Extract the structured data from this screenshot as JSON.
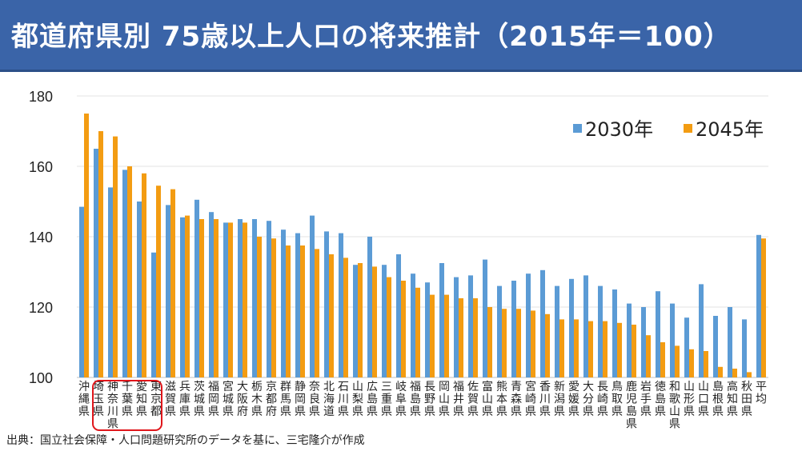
{
  "title": "都道府県別 75歳以上人口の将来推計（2015年＝100）",
  "source": "出典：国立社会保障・人口問題研究所のデータを基に、三宅隆介が作成",
  "colors": {
    "header_bg": "#3a64a8",
    "series_2030": "#5b9bd5",
    "series_2045": "#f39c12",
    "highlight": "#e0161b"
  },
  "chart_data": {
    "type": "bar",
    "ylim": [
      100,
      180
    ],
    "yticks": [
      100,
      120,
      140,
      160,
      180
    ],
    "grid": true,
    "legend_position": "top-right",
    "highlighted_categories": [
      "埼玉県",
      "神奈川県",
      "千葉県",
      "愛知県",
      "東京都"
    ],
    "categories": [
      "沖縄県",
      "埼玉県",
      "神奈川県",
      "千葉県",
      "愛知県",
      "東京都",
      "滋賀県",
      "兵庫県",
      "茨城県",
      "福岡県",
      "宮城県",
      "大阪府",
      "栃木県",
      "京都府",
      "群馬県",
      "静岡県",
      "奈良県",
      "北海道",
      "石川県",
      "山梨県",
      "広島県",
      "三重県",
      "岐阜県",
      "福島県",
      "長野県",
      "岡山県",
      "福井県",
      "佐賀県",
      "富山県",
      "熊本県",
      "青森県",
      "宮崎県",
      "香川県",
      "新潟県",
      "愛媛県",
      "大分県",
      "長崎県",
      "鳥取県",
      "鹿児島県",
      "岩手県",
      "徳島県",
      "和歌山県",
      "山形県",
      "山口県",
      "島根県",
      "高知県",
      "秋田県",
      "平均"
    ],
    "series": [
      {
        "name": "2030年",
        "values": [
          148.5,
          165,
          154,
          159,
          150,
          135.5,
          149,
          145.5,
          150.5,
          147,
          144,
          145,
          145,
          144.5,
          142,
          141,
          146,
          141.5,
          141,
          132,
          140,
          132,
          135,
          129.5,
          127,
          132.5,
          128.5,
          129,
          133.5,
          126,
          127.5,
          129.5,
          130.5,
          126,
          128,
          129,
          126,
          125,
          121,
          120,
          124.5,
          121,
          117,
          126.5,
          117.5,
          120,
          116.5,
          140.5
        ]
      },
      {
        "name": "2045年",
        "values": [
          175,
          170,
          168.5,
          160,
          158,
          154.5,
          153.5,
          146,
          145,
          145,
          144,
          144,
          140,
          139.5,
          137.5,
          137.5,
          136.5,
          135,
          134,
          132.5,
          131.5,
          128.5,
          127.5,
          125.5,
          123.5,
          123.5,
          122.5,
          122.5,
          120,
          119.5,
          119.5,
          119,
          118,
          116.5,
          116.5,
          116,
          116,
          115.5,
          115,
          112,
          110,
          109,
          108,
          107.5,
          103,
          102.5,
          101.5,
          139.5
        ]
      }
    ]
  }
}
